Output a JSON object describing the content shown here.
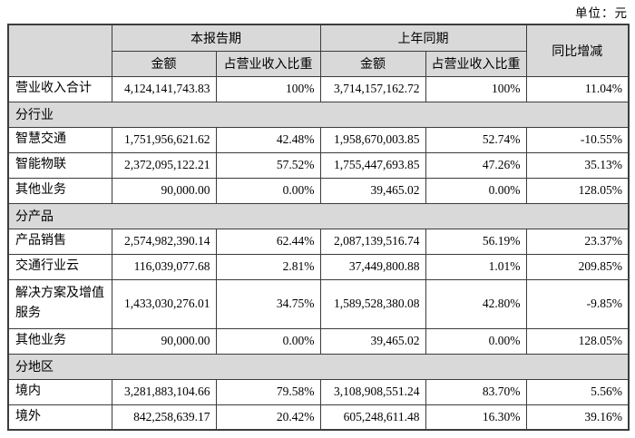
{
  "unit_label": "单位：元",
  "table": {
    "header": {
      "current_period": "本报告期",
      "prior_period": "上年同期",
      "yoy_change": "同比增减",
      "amount": "金额",
      "proportion": "占营业收入比重"
    },
    "colors": {
      "header_bg": "#d9d9d9",
      "section_bg": "#d9d9d9",
      "border": "#3c3c3c",
      "page_bg": "#ffffff"
    },
    "rows": [
      {
        "type": "data",
        "label": "营业收入合计",
        "cur_amount": "4,124,141,743.83",
        "cur_pct": "100%",
        "prior_amount": "3,714,157,162.72",
        "prior_pct": "100%",
        "yoy": "11.04%"
      },
      {
        "type": "section",
        "label": "分行业"
      },
      {
        "type": "data",
        "label": "智慧交通",
        "cur_amount": "1,751,956,621.62",
        "cur_pct": "42.48%",
        "prior_amount": "1,958,670,003.85",
        "prior_pct": "52.74%",
        "yoy": "-10.55%"
      },
      {
        "type": "data",
        "label": "智能物联",
        "cur_amount": "2,372,095,122.21",
        "cur_pct": "57.52%",
        "prior_amount": "1,755,447,693.85",
        "prior_pct": "47.26%",
        "yoy": "35.13%"
      },
      {
        "type": "data",
        "label": "其他业务",
        "cur_amount": "90,000.00",
        "cur_pct": "0.00%",
        "prior_amount": "39,465.02",
        "prior_pct": "0.00%",
        "yoy": "128.05%"
      },
      {
        "type": "section",
        "label": "分产品"
      },
      {
        "type": "data",
        "label": "产品销售",
        "cur_amount": "2,574,982,390.14",
        "cur_pct": "62.44%",
        "prior_amount": "2,087,139,516.74",
        "prior_pct": "56.19%",
        "yoy": "23.37%"
      },
      {
        "type": "data",
        "label": "交通行业云",
        "cur_amount": "116,039,077.68",
        "cur_pct": "2.81%",
        "prior_amount": "37,449,800.88",
        "prior_pct": "1.01%",
        "yoy": "209.85%"
      },
      {
        "type": "data",
        "label": "解决方案及增值服务",
        "cur_amount": "1,433,030,276.01",
        "cur_pct": "34.75%",
        "prior_amount": "1,589,528,380.08",
        "prior_pct": "42.80%",
        "yoy": "-9.85%",
        "tall": true
      },
      {
        "type": "data",
        "label": "其他业务",
        "cur_amount": "90,000.00",
        "cur_pct": "0.00%",
        "prior_amount": "39,465.02",
        "prior_pct": "0.00%",
        "yoy": "128.05%"
      },
      {
        "type": "section",
        "label": "分地区"
      },
      {
        "type": "data",
        "label": "境内",
        "cur_amount": "3,281,883,104.66",
        "cur_pct": "79.58%",
        "prior_amount": "3,108,908,551.24",
        "prior_pct": "83.70%",
        "yoy": "5.56%"
      },
      {
        "type": "data",
        "label": "境外",
        "cur_amount": "842,258,639.17",
        "cur_pct": "20.42%",
        "prior_amount": "605,248,611.48",
        "prior_pct": "16.30%",
        "yoy": "39.16%"
      }
    ]
  }
}
